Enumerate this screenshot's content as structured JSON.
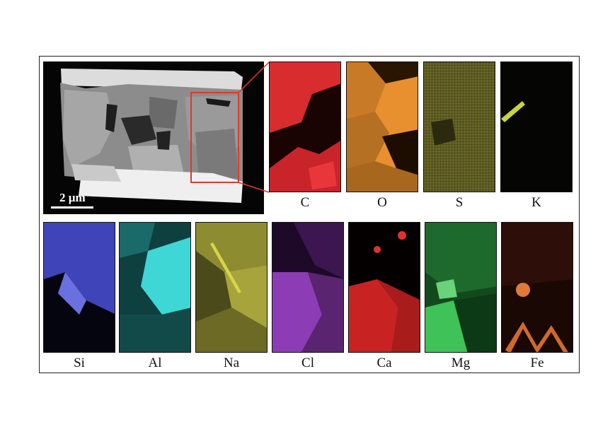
{
  "figure": {
    "scale_bar_label": "2 µm",
    "maps": [
      {
        "element": "C",
        "color": "#e8262b"
      },
      {
        "element": "O",
        "color": "#f29a3c"
      },
      {
        "element": "S",
        "color": "#7d7a2c"
      },
      {
        "element": "K",
        "color": "#c8d63a"
      },
      {
        "element": "Si",
        "color": "#4a4fd0"
      },
      {
        "element": "Al",
        "color": "#2fc8c8"
      },
      {
        "element": "Na",
        "color": "#9c9a3a"
      },
      {
        "element": "Cl",
        "color": "#8a3ab0"
      },
      {
        "element": "Ca",
        "color": "#d42222"
      },
      {
        "element": "Mg",
        "color": "#2fa84a"
      },
      {
        "element": "Fe",
        "color": "#c8622a"
      }
    ],
    "roi_color": "#e0392b"
  }
}
